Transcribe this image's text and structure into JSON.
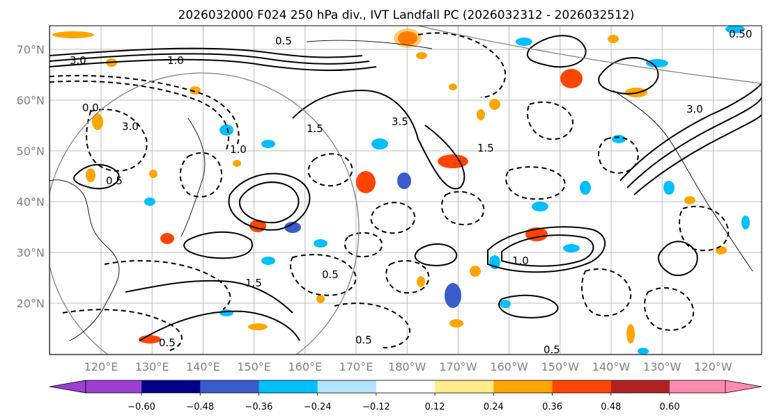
{
  "title": "2026032000 F024 250 hPa div., IVT Landfall PC (2026032312 - 2026032512)",
  "map": {
    "lat_labels": [
      "70°N",
      "60°N",
      "50°N",
      "40°N",
      "30°N",
      "20°N"
    ],
    "lon_labels": [
      "120°E",
      "130°E",
      "140°E",
      "150°E",
      "160°E",
      "170°E",
      "180°W",
      "170°W",
      "160°W",
      "150°W",
      "140°W",
      "130°W",
      "120°W"
    ],
    "contour_labels": [
      "3.0",
      "1.0",
      "0.5",
      "0.0",
      "1.5",
      "0.5",
      "1.0",
      "3.5",
      "1.5",
      "0.5",
      "1.0",
      "3.0",
      "1.5",
      "0.5",
      "3.0",
      "0.5",
      "0.5",
      "0.50"
    ]
  },
  "colorbar": {
    "tick_labels": [
      "−0.60",
      "−0.48",
      "−0.36",
      "−0.24",
      "−0.12",
      "0.12",
      "0.24",
      "0.36",
      "0.48",
      "0.60"
    ],
    "colors": {
      "under": "#9b3fd0",
      "bins": [
        "#9b3fd0",
        "#00008b",
        "#3a5bcc",
        "#00bfff",
        "#b3e3fa",
        "#ffffff",
        "#ffec8b",
        "#ffa500",
        "#ff4500",
        "#b22222",
        "#ff8cb0"
      ],
      "over": "#ff8cb0"
    }
  }
}
